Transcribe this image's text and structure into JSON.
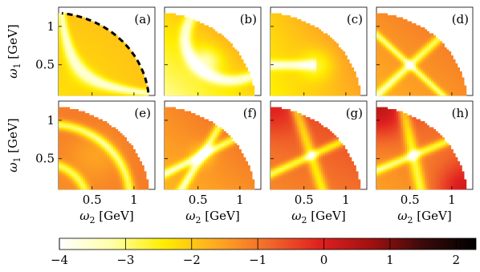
{
  "chart_data": {
    "type": "heatmap",
    "panels": [
      {
        "tag": "(a)",
        "pattern": "a"
      },
      {
        "tag": "(b)",
        "pattern": "b"
      },
      {
        "tag": "(c)",
        "pattern": "c"
      },
      {
        "tag": "(d)",
        "pattern": "d"
      },
      {
        "tag": "(e)",
        "pattern": "e"
      },
      {
        "tag": "(f)",
        "pattern": "f"
      },
      {
        "tag": "(g)",
        "pattern": "g"
      },
      {
        "tag": "(h)",
        "pattern": "h"
      }
    ],
    "x_axis": {
      "label_var": "ω",
      "label_sub": "2",
      "label_unit": "[GeV]",
      "ticks": [
        0.5,
        1
      ],
      "tick_labels": [
        "0.5",
        "1"
      ],
      "range": [
        0.1,
        1.25
      ]
    },
    "y_axis": {
      "label_var": "ω",
      "label_sub": "1",
      "label_unit": "[GeV]",
      "ticks": [
        0.5,
        1
      ],
      "tick_labels": [
        "0.5",
        "1"
      ],
      "range": [
        0.1,
        1.25
      ]
    },
    "kinematic_boundary": {
      "style": "dashed",
      "color": "#000000",
      "panel": "(a)"
    },
    "colorbar": {
      "range": [
        -4,
        2.3
      ],
      "ticks": [
        -4,
        -3,
        -2,
        -1,
        0,
        1,
        2
      ],
      "tick_labels": [
        "−4",
        "−3",
        "−2",
        "−1",
        "0",
        "1",
        "2"
      ],
      "colormap": "hot_reversed",
      "stops": [
        "#ffffff",
        "#ffffaa",
        "#ffee00",
        "#ffaa22",
        "#f26a2a",
        "#e02020",
        "#a01010",
        "#3a0a0a",
        "#000000"
      ]
    }
  }
}
